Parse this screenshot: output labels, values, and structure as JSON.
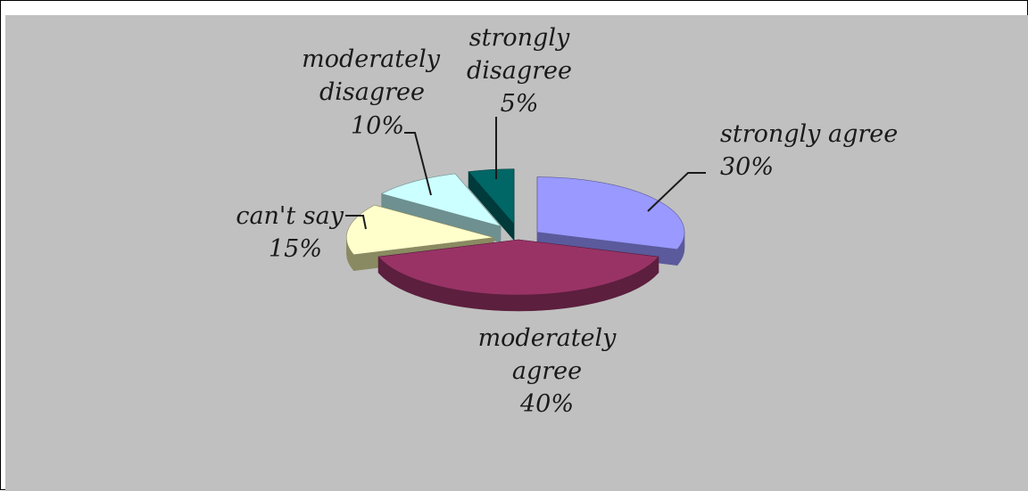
{
  "chart_data": {
    "type": "pie",
    "style": "3d-exploded",
    "title": "",
    "slices": [
      {
        "category": "strongly agree",
        "value": 30,
        "value_label": "30%",
        "color": "#9999ff",
        "side_color": "#5a5a9c"
      },
      {
        "category": "moderately agree",
        "value": 40,
        "value_label": "40%",
        "color": "#993366",
        "side_color": "#5c1f3e"
      },
      {
        "category": "can't say",
        "value": 15,
        "value_label": "15%",
        "color": "#ffffcc",
        "side_color": "#8a8a62"
      },
      {
        "category": "moderately disagree",
        "value": 10,
        "value_label": "10%",
        "color": "#ccffff",
        "side_color": "#6e9090"
      },
      {
        "category": "strongly disagree",
        "value": 5,
        "value_label": "5%",
        "color": "#006666",
        "side_color": "#003a3a"
      }
    ],
    "background_color": "#c0c0c0"
  }
}
